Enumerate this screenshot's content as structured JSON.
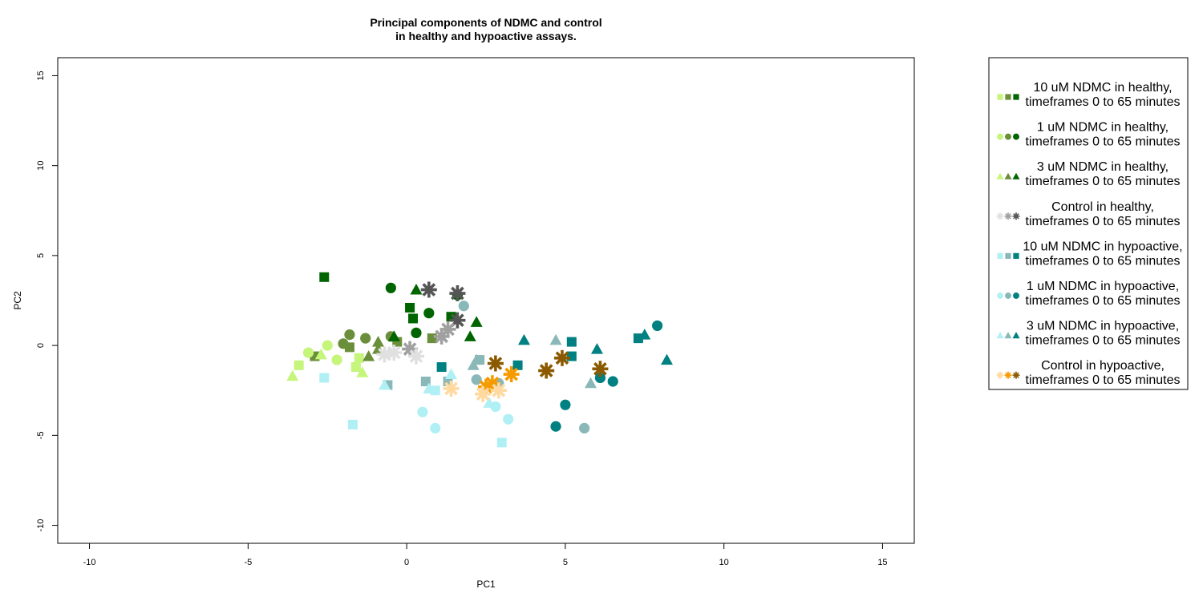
{
  "chart_data": {
    "type": "scatter",
    "title": [
      "Principal components of NDMC and control",
      "in healthy and hypoactive assays."
    ],
    "xlabel": "PC1",
    "ylabel": "PC2",
    "xlim": [
      -11,
      16
    ],
    "ylim": [
      -11,
      16
    ],
    "xticks": [
      -10,
      -5,
      0,
      5,
      10,
      15
    ],
    "yticks": [
      -10,
      -5,
      0,
      5,
      10,
      15
    ],
    "grid": false,
    "legend_position": "right",
    "series": [
      {
        "name": [
          "10 uM NDMC in healthy,",
          "timeframes 0 to 65 minutes"
        ],
        "shape": "square",
        "colors": [
          "#c5f57a",
          "#6b8e3a",
          "#006400"
        ],
        "points": [
          [
            -2.6,
            3.8
          ],
          [
            0.1,
            2.1
          ],
          [
            0.2,
            1.5
          ],
          [
            1.4,
            1.6
          ],
          [
            0.8,
            0.4
          ],
          [
            -0.3,
            0.2
          ],
          [
            -1.8,
            -0.1
          ],
          [
            -2.9,
            -0.6
          ],
          [
            -1.5,
            -0.7
          ],
          [
            -3.4,
            -1.1
          ],
          [
            -1.6,
            -1.2
          ]
        ]
      },
      {
        "name": [
          "1 uM NDMC in healthy,",
          "timeframes 0 to 65 minutes"
        ],
        "shape": "circle",
        "colors": [
          "#c5f57a",
          "#6b8e3a",
          "#006400"
        ],
        "points": [
          [
            -0.5,
            3.2
          ],
          [
            0.7,
            1.8
          ],
          [
            1.6,
            2.8
          ],
          [
            0.3,
            0.7
          ],
          [
            -0.5,
            0.5
          ],
          [
            -1.3,
            0.4
          ],
          [
            -1.8,
            0.6
          ],
          [
            -2.0,
            0.1
          ],
          [
            -2.5,
            0.0
          ],
          [
            -3.1,
            -0.4
          ],
          [
            -2.2,
            -0.8
          ]
        ]
      },
      {
        "name": [
          "3 uM NDMC in healthy,",
          "timeframes 0 to 65 minutes"
        ],
        "shape": "triangle",
        "colors": [
          "#c5f57a",
          "#6b8e3a",
          "#006400"
        ],
        "points": [
          [
            0.3,
            3.1
          ],
          [
            2.2,
            1.3
          ],
          [
            2.0,
            0.5
          ],
          [
            -0.4,
            0.5
          ],
          [
            -0.9,
            0.2
          ],
          [
            -0.9,
            -0.2
          ],
          [
            -1.2,
            -0.6
          ],
          [
            -2.7,
            -0.5
          ],
          [
            -1.4,
            -1.5
          ],
          [
            -3.6,
            -1.7
          ]
        ]
      },
      {
        "name": [
          "Control in healthy,",
          "timeframes 0 to 65 minutes"
        ],
        "shape": "star",
        "colors": [
          "#e0e0e0",
          "#a0a0a0",
          "#555555"
        ],
        "points": [
          [
            0.7,
            3.1
          ],
          [
            1.6,
            2.9
          ],
          [
            1.6,
            1.4
          ],
          [
            1.3,
            0.9
          ],
          [
            1.1,
            0.5
          ],
          [
            0.1,
            -0.2
          ],
          [
            0.3,
            -0.6
          ],
          [
            -0.4,
            -0.4
          ],
          [
            -0.7,
            -0.5
          ]
        ]
      },
      {
        "name": [
          "10 uM NDMC in hypoactive,",
          "timeframes 0 to 65 minutes"
        ],
        "shape": "square",
        "colors": [
          "#b0f0f5",
          "#8ab8b8",
          "#008080"
        ],
        "points": [
          [
            5.2,
            0.2
          ],
          [
            7.3,
            0.4
          ],
          [
            5.2,
            -0.6
          ],
          [
            3.5,
            -1.1
          ],
          [
            1.1,
            -1.2
          ],
          [
            2.3,
            -0.8
          ],
          [
            0.6,
            -2.0
          ],
          [
            1.3,
            -2.0
          ],
          [
            -0.6,
            -2.2
          ],
          [
            0.9,
            -2.5
          ],
          [
            -2.6,
            -1.8
          ],
          [
            -1.7,
            -4.4
          ],
          [
            3.0,
            -5.4
          ]
        ]
      },
      {
        "name": [
          "1 uM NDMC in hypoactive,",
          "timeframes 0 to 65 minutes"
        ],
        "shape": "circle",
        "colors": [
          "#b0f0f5",
          "#8ab8b8",
          "#008080"
        ],
        "points": [
          [
            7.9,
            1.1
          ],
          [
            6.5,
            -2.0
          ],
          [
            6.1,
            -1.8
          ],
          [
            5.0,
            -3.3
          ],
          [
            4.7,
            -4.5
          ],
          [
            5.6,
            -4.6
          ],
          [
            1.8,
            2.2
          ],
          [
            2.2,
            -1.9
          ],
          [
            2.9,
            -2.1
          ],
          [
            2.8,
            -3.4
          ],
          [
            3.2,
            -4.1
          ],
          [
            0.5,
            -3.7
          ],
          [
            0.9,
            -4.6
          ]
        ]
      },
      {
        "name": [
          "3 uM NDMC in hypoactive,",
          "timeframes 0 to 65 minutes"
        ],
        "shape": "triangle",
        "colors": [
          "#b0f0f5",
          "#8ab8b8",
          "#008080"
        ],
        "points": [
          [
            7.5,
            0.6
          ],
          [
            8.2,
            -0.8
          ],
          [
            6.0,
            -0.2
          ],
          [
            3.7,
            0.3
          ],
          [
            4.7,
            0.3
          ],
          [
            5.8,
            -2.1
          ],
          [
            2.2,
            -0.8
          ],
          [
            2.1,
            -1.1
          ],
          [
            1.4,
            -1.6
          ],
          [
            -0.7,
            -2.2
          ],
          [
            0.7,
            -2.4
          ],
          [
            2.6,
            -3.2
          ]
        ]
      },
      {
        "name": [
          "Control in hypoactive,",
          "timeframes 0 to 65 minutes"
        ],
        "shape": "star",
        "colors": [
          "#ffd9a0",
          "#f59a00",
          "#8b5a00"
        ],
        "points": [
          [
            4.9,
            -0.7
          ],
          [
            4.4,
            -1.4
          ],
          [
            6.1,
            -1.3
          ],
          [
            2.8,
            -1.0
          ],
          [
            3.3,
            -1.6
          ],
          [
            2.7,
            -2.1
          ],
          [
            2.5,
            -2.3
          ],
          [
            2.4,
            -2.7
          ],
          [
            2.9,
            -2.5
          ],
          [
            1.4,
            -2.4
          ]
        ]
      }
    ]
  }
}
